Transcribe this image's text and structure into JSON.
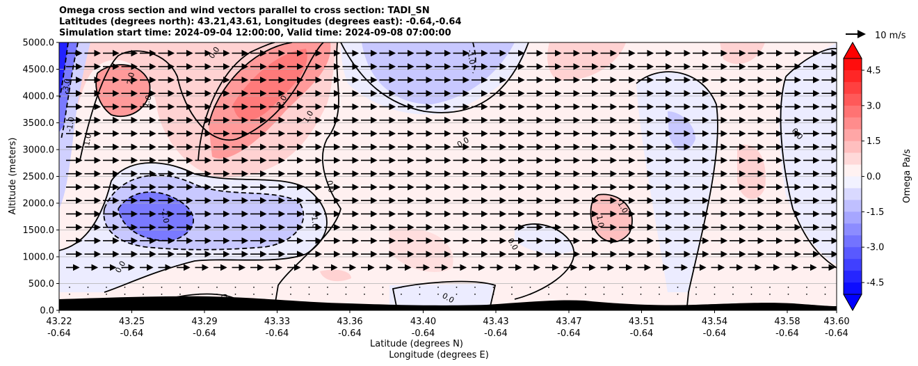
{
  "chart_data": {
    "type": "heatmap",
    "title_lines": [
      "Omega cross section and wind vectors parallel to cross section: TADI_SN",
      "Latitudes (degrees north): 43.21,43.61, Longitudes (degrees east): -0.64,-0.64",
      "Simulation start time: 2024-09-04 12:00:00, Valid time: 2024-09-08 07:00:00"
    ],
    "ylabel": "Altitude (meters)",
    "xlabel_lines": [
      "Latitude (degrees N)",
      "Longitude (degrees E)"
    ],
    "ylim": [
      0,
      5000
    ],
    "y_ticks": [
      "0.0",
      "500.0",
      "1000.0",
      "1500.0",
      "2000.0",
      "2500.0",
      "3000.0",
      "3500.0",
      "4000.0",
      "4500.0",
      "5000.0"
    ],
    "x_ticks": [
      {
        "lat": "43.22",
        "lon": "-0.64"
      },
      {
        "lat": "43.25",
        "lon": "-0.64"
      },
      {
        "lat": "43.29",
        "lon": "-0.64"
      },
      {
        "lat": "43.33",
        "lon": "-0.64"
      },
      {
        "lat": "43.36",
        "lon": "-0.64"
      },
      {
        "lat": "43.40",
        "lon": "-0.64"
      },
      {
        "lat": "43.43",
        "lon": "-0.64"
      },
      {
        "lat": "43.47",
        "lon": "-0.64"
      },
      {
        "lat": "43.51",
        "lon": "-0.64"
      },
      {
        "lat": "43.54",
        "lon": "-0.64"
      },
      {
        "lat": "43.58",
        "lon": "-0.64"
      },
      {
        "lat": "43.60",
        "lon": "-0.64"
      }
    ],
    "colorbar": {
      "label": "Omega Pa/s",
      "range": [
        -5.0,
        5.0
      ],
      "ticks": [
        "-4.5",
        "-3.0",
        "-1.5",
        "0.0",
        "1.5",
        "3.0",
        "4.5"
      ],
      "extend": "both",
      "colormap": "bwr"
    },
    "quiver_key": "10 m/s",
    "contour_labels": [
      "0.0",
      "2.0",
      "1.0",
      "-1.0",
      "-3.0",
      "-2.0"
    ],
    "regions": [
      {
        "name": "strong-descent-left-edge",
        "omega": -3.5
      },
      {
        "name": "positive-core-left",
        "omega": 2.0
      },
      {
        "name": "positive-core-center",
        "omega": 2.5
      },
      {
        "name": "negative-core-low",
        "omega": -2.0
      },
      {
        "name": "negative-upper-center",
        "omega": -0.8
      },
      {
        "name": "positive-mid-right",
        "omega": 1.2
      }
    ],
    "grid": "horizontal"
  },
  "colors": {
    "neg_strong": "#0000ff",
    "neg_mid": "#7a7aff",
    "neg_light": "#c8c8ff",
    "neg_faint": "#ececff",
    "pos_faint": "#fff0f0",
    "pos_light": "#ffd2d2",
    "pos_mid": "#ff9a9a",
    "pos_strong": "#ff6a6a",
    "terrain": "#000000"
  }
}
